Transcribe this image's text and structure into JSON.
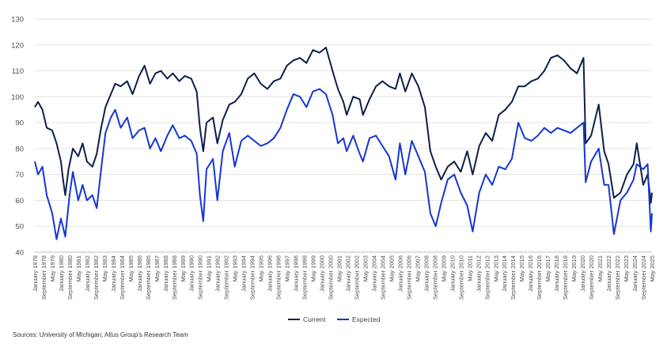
{
  "source_note": "Sources: University of Michigan; Altus Group's Research Team",
  "chart_data": {
    "type": "line",
    "xlabel": "",
    "ylabel": "",
    "ylim": [
      40,
      130
    ],
    "yticks": [
      40,
      50,
      60,
      70,
      80,
      90,
      100,
      110,
      120,
      130
    ],
    "grid": "horizontal",
    "legend_position": "bottom-center",
    "x_tick_labels": [
      "January 1978",
      "September 1978",
      "May 1979",
      "January 1980",
      "September 1980",
      "May 1981",
      "January 1982",
      "September 1982",
      "May 1983",
      "January 1984",
      "September 1984",
      "May 1985",
      "January 1986",
      "September 1986",
      "May 1987",
      "January 1988",
      "September 1988",
      "May 1989",
      "January 1990",
      "September 1990",
      "May 1991",
      "January 1992",
      "September 1992",
      "May 1993",
      "January 1994",
      "September 1994",
      "May 1995",
      "January 1996",
      "September 1996",
      "May 1997",
      "January 1998",
      "September 1998",
      "May 1999",
      "January 2000",
      "September 2000",
      "May 2001",
      "January 2002",
      "September 2002",
      "May 2003",
      "January 2004",
      "September 2004",
      "May 2005",
      "January 2006",
      "September 2006",
      "May 2007",
      "January 2008",
      "September 2008",
      "May 2009",
      "January 2010",
      "September 2010",
      "May 2011",
      "January 2012",
      "September 2012",
      "May 2013",
      "January 2014",
      "September 2014",
      "May 2015",
      "January 2016",
      "September 2016",
      "May 2017",
      "January 2018",
      "September 2018",
      "May 2019",
      "January 2020",
      "September 2020",
      "May 2021",
      "January 2022",
      "September 2022",
      "May 2023",
      "January 2024",
      "September 2024",
      "May 2025"
    ],
    "series": [
      {
        "name": "Current",
        "color": "#0c1f4a",
        "points": [
          [
            "1978-01",
            96
          ],
          [
            "1978-04",
            98
          ],
          [
            "1978-08",
            95
          ],
          [
            "1978-12",
            88
          ],
          [
            "1979-05",
            87
          ],
          [
            "1979-09",
            82
          ],
          [
            "1980-01",
            75
          ],
          [
            "1980-03",
            68
          ],
          [
            "1980-05",
            62
          ],
          [
            "1980-08",
            72
          ],
          [
            "1980-12",
            80
          ],
          [
            "1981-05",
            77
          ],
          [
            "1981-09",
            82
          ],
          [
            "1982-01",
            75
          ],
          [
            "1982-06",
            73
          ],
          [
            "1982-10",
            78
          ],
          [
            "1983-02",
            88
          ],
          [
            "1983-06",
            96
          ],
          [
            "1983-11",
            101
          ],
          [
            "1984-03",
            105
          ],
          [
            "1984-08",
            104
          ],
          [
            "1985-02",
            106
          ],
          [
            "1985-07",
            101
          ],
          [
            "1986-01",
            108
          ],
          [
            "1986-06",
            112
          ],
          [
            "1986-11",
            105
          ],
          [
            "1987-04",
            109
          ],
          [
            "1987-09",
            110
          ],
          [
            "1988-03",
            107
          ],
          [
            "1988-08",
            109
          ],
          [
            "1989-02",
            106
          ],
          [
            "1989-07",
            108
          ],
          [
            "1990-01",
            107
          ],
          [
            "1990-06",
            102
          ],
          [
            "1990-09",
            88
          ],
          [
            "1990-12",
            79
          ],
          [
            "1991-03",
            90
          ],
          [
            "1991-09",
            92
          ],
          [
            "1992-01",
            82
          ],
          [
            "1992-06",
            91
          ],
          [
            "1992-12",
            97
          ],
          [
            "1993-05",
            98
          ],
          [
            "1993-11",
            101
          ],
          [
            "1994-05",
            107
          ],
          [
            "1994-11",
            109
          ],
          [
            "1995-05",
            105
          ],
          [
            "1995-11",
            103
          ],
          [
            "1996-05",
            106
          ],
          [
            "1996-11",
            107
          ],
          [
            "1997-05",
            112
          ],
          [
            "1997-11",
            114
          ],
          [
            "1998-05",
            115
          ],
          [
            "1998-11",
            113
          ],
          [
            "1999-05",
            118
          ],
          [
            "1999-11",
            117
          ],
          [
            "2000-05",
            119
          ],
          [
            "2000-11",
            110
          ],
          [
            "2001-04",
            103
          ],
          [
            "2001-09",
            98
          ],
          [
            "2001-12",
            93
          ],
          [
            "2002-06",
            100
          ],
          [
            "2002-12",
            99
          ],
          [
            "2003-03",
            93
          ],
          [
            "2003-09",
            99
          ],
          [
            "2004-03",
            104
          ],
          [
            "2004-09",
            106
          ],
          [
            "2005-03",
            104
          ],
          [
            "2005-09",
            103
          ],
          [
            "2006-01",
            109
          ],
          [
            "2006-06",
            102
          ],
          [
            "2006-12",
            109
          ],
          [
            "2007-06",
            104
          ],
          [
            "2007-12",
            96
          ],
          [
            "2008-05",
            79
          ],
          [
            "2008-10",
            73
          ],
          [
            "2009-03",
            68
          ],
          [
            "2009-09",
            73
          ],
          [
            "2010-03",
            75
          ],
          [
            "2010-09",
            71
          ],
          [
            "2011-03",
            79
          ],
          [
            "2011-08",
            70
          ],
          [
            "2012-02",
            81
          ],
          [
            "2012-08",
            86
          ],
          [
            "2013-02",
            83
          ],
          [
            "2013-08",
            93
          ],
          [
            "2014-02",
            95
          ],
          [
            "2014-08",
            98
          ],
          [
            "2015-02",
            104
          ],
          [
            "2015-08",
            104
          ],
          [
            "2016-02",
            106
          ],
          [
            "2016-08",
            107
          ],
          [
            "2017-02",
            110
          ],
          [
            "2017-08",
            115
          ],
          [
            "2018-02",
            116
          ],
          [
            "2018-08",
            114
          ],
          [
            "2019-02",
            111
          ],
          [
            "2019-08",
            109
          ],
          [
            "2020-02",
            115
          ],
          [
            "2020-04",
            82
          ],
          [
            "2020-09",
            85
          ],
          [
            "2021-04",
            97
          ],
          [
            "2021-09",
            79
          ],
          [
            "2022-01",
            74
          ],
          [
            "2022-06",
            61
          ],
          [
            "2022-12",
            63
          ],
          [
            "2023-06",
            70
          ],
          [
            "2023-12",
            74
          ],
          [
            "2024-03",
            82
          ],
          [
            "2024-09",
            66
          ],
          [
            "2025-01",
            70
          ],
          [
            "2025-04",
            59
          ],
          [
            "2025-05",
            63
          ]
        ]
      },
      {
        "name": "Expected",
        "color": "#1436d6",
        "points": [
          [
            "1978-01",
            75
          ],
          [
            "1978-04",
            70
          ],
          [
            "1978-08",
            73
          ],
          [
            "1978-12",
            62
          ],
          [
            "1979-05",
            55
          ],
          [
            "1979-09",
            45
          ],
          [
            "1980-01",
            53
          ],
          [
            "1980-05",
            46
          ],
          [
            "1980-09",
            62
          ],
          [
            "1980-12",
            71
          ],
          [
            "1981-05",
            60
          ],
          [
            "1981-09",
            66
          ],
          [
            "1982-01",
            60
          ],
          [
            "1982-06",
            62
          ],
          [
            "1982-10",
            57
          ],
          [
            "1983-02",
            72
          ],
          [
            "1983-06",
            86
          ],
          [
            "1983-11",
            92
          ],
          [
            "1984-03",
            95
          ],
          [
            "1984-08",
            88
          ],
          [
            "1985-02",
            92
          ],
          [
            "1985-07",
            84
          ],
          [
            "1986-01",
            87
          ],
          [
            "1986-06",
            88
          ],
          [
            "1986-11",
            80
          ],
          [
            "1987-04",
            84
          ],
          [
            "1987-09",
            79
          ],
          [
            "1988-03",
            85
          ],
          [
            "1988-08",
            89
          ],
          [
            "1989-02",
            84
          ],
          [
            "1989-07",
            85
          ],
          [
            "1990-01",
            83
          ],
          [
            "1990-06",
            78
          ],
          [
            "1990-09",
            62
          ],
          [
            "1990-12",
            52
          ],
          [
            "1991-03",
            72
          ],
          [
            "1991-09",
            76
          ],
          [
            "1992-01",
            60
          ],
          [
            "1992-06",
            79
          ],
          [
            "1992-12",
            86
          ],
          [
            "1993-05",
            73
          ],
          [
            "1993-11",
            83
          ],
          [
            "1994-05",
            85
          ],
          [
            "1994-11",
            83
          ],
          [
            "1995-05",
            81
          ],
          [
            "1995-11",
            82
          ],
          [
            "1996-05",
            84
          ],
          [
            "1996-11",
            88
          ],
          [
            "1997-05",
            95
          ],
          [
            "1997-11",
            101
          ],
          [
            "1998-05",
            100
          ],
          [
            "1998-11",
            96
          ],
          [
            "1999-05",
            102
          ],
          [
            "1999-11",
            103
          ],
          [
            "2000-05",
            101
          ],
          [
            "2000-11",
            93
          ],
          [
            "2001-04",
            82
          ],
          [
            "2001-09",
            84
          ],
          [
            "2001-12",
            79
          ],
          [
            "2002-06",
            85
          ],
          [
            "2002-12",
            78
          ],
          [
            "2003-03",
            75
          ],
          [
            "2003-09",
            84
          ],
          [
            "2004-03",
            85
          ],
          [
            "2004-09",
            81
          ],
          [
            "2005-03",
            77
          ],
          [
            "2005-09",
            68
          ],
          [
            "2006-01",
            82
          ],
          [
            "2006-06",
            70
          ],
          [
            "2006-12",
            83
          ],
          [
            "2007-06",
            77
          ],
          [
            "2007-12",
            71
          ],
          [
            "2008-05",
            55
          ],
          [
            "2008-10",
            50
          ],
          [
            "2009-03",
            59
          ],
          [
            "2009-09",
            68
          ],
          [
            "2010-03",
            70
          ],
          [
            "2010-09",
            63
          ],
          [
            "2011-03",
            58
          ],
          [
            "2011-08",
            48
          ],
          [
            "2012-02",
            63
          ],
          [
            "2012-08",
            70
          ],
          [
            "2013-02",
            66
          ],
          [
            "2013-08",
            73
          ],
          [
            "2014-02",
            72
          ],
          [
            "2014-08",
            76
          ],
          [
            "2015-02",
            90
          ],
          [
            "2015-08",
            84
          ],
          [
            "2016-02",
            83
          ],
          [
            "2016-08",
            85
          ],
          [
            "2017-02",
            88
          ],
          [
            "2017-08",
            86
          ],
          [
            "2018-02",
            88
          ],
          [
            "2018-08",
            87
          ],
          [
            "2019-02",
            86
          ],
          [
            "2019-08",
            88
          ],
          [
            "2020-02",
            90
          ],
          [
            "2020-04",
            67
          ],
          [
            "2020-09",
            75
          ],
          [
            "2021-04",
            80
          ],
          [
            "2021-09",
            66
          ],
          [
            "2022-01",
            66
          ],
          [
            "2022-06",
            47
          ],
          [
            "2022-12",
            60
          ],
          [
            "2023-06",
            63
          ],
          [
            "2023-12",
            68
          ],
          [
            "2024-03",
            74
          ],
          [
            "2024-09",
            72
          ],
          [
            "2025-01",
            74
          ],
          [
            "2025-04",
            48
          ],
          [
            "2025-05",
            55
          ]
        ]
      }
    ]
  }
}
